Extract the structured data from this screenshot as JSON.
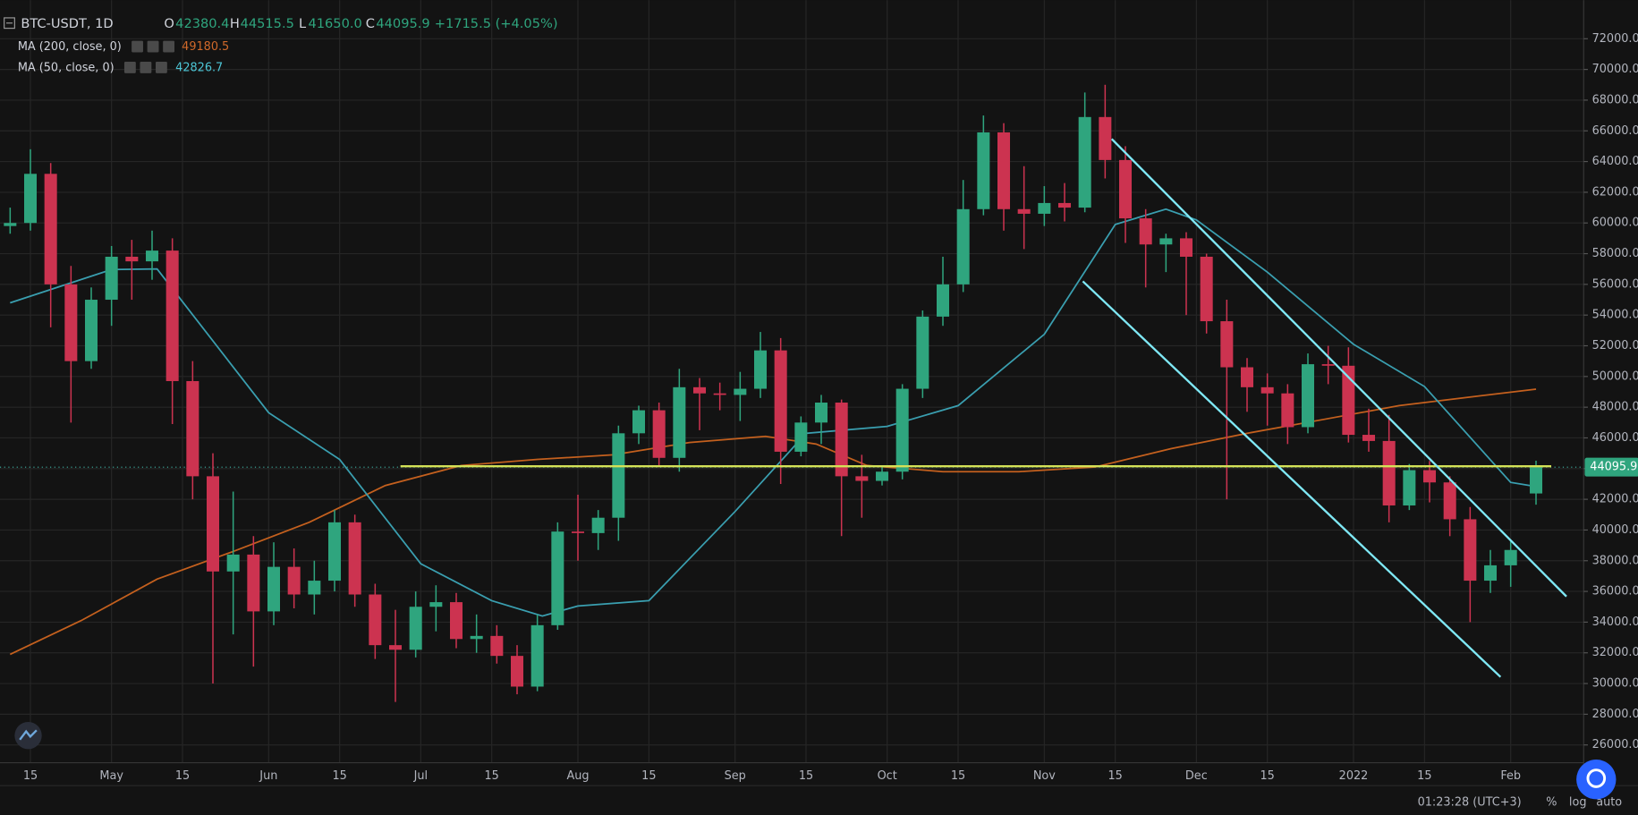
{
  "header": {
    "symbol": "BTC-USDT, 1D",
    "o_label": "O",
    "open": "42380.4",
    "h_label": "H",
    "high": "44515.5",
    "l_label": "L",
    "low": "41650.0",
    "c_label": "C",
    "close": "44095.9",
    "change": "+1715.5 (+4.05%)"
  },
  "indicators": [
    {
      "name": "MA (200, close, 0)",
      "value": "49180.5"
    },
    {
      "name": "MA (50, close, 0)",
      "value": "42826.7"
    }
  ],
  "footer": {
    "time": "01:23:28 (UTC+3)",
    "percent": "%",
    "log": "log",
    "auto": "auto"
  },
  "chart_data": {
    "type": "candlestick",
    "up_color": "#2fa57e",
    "down_color": "#cc3350",
    "grid": true,
    "x": [
      -4,
      0,
      4,
      8,
      12,
      16,
      20,
      24,
      28,
      32,
      36,
      40,
      44,
      48,
      52,
      56,
      60,
      64,
      68,
      72,
      76,
      80,
      84,
      88,
      92,
      96,
      100,
      104,
      108,
      112,
      116,
      120,
      124,
      128,
      132,
      136,
      140,
      144,
      148,
      152,
      156,
      160,
      164,
      168,
      172,
      176,
      180,
      184,
      188,
      192,
      196,
      200,
      204,
      208,
      212,
      216,
      220,
      224,
      228,
      232,
      236,
      240,
      244,
      248,
      252,
      256,
      260,
      264,
      268,
      272,
      276,
      280,
      284,
      288,
      292,
      297
    ],
    "open": [
      59800,
      60000,
      63200,
      56000,
      51000,
      55000,
      57800,
      57500,
      58200,
      49700,
      43500,
      37300,
      38400,
      34700,
      37600,
      35800,
      36700,
      40500,
      35800,
      32500,
      32200,
      35000,
      35300,
      32900,
      33100,
      31800,
      29800,
      33800,
      39900,
      39800,
      40800,
      46300,
      47800,
      44700,
      49300,
      48900,
      48800,
      49200,
      51700,
      45100,
      47000,
      48300,
      43500,
      43200,
      43800,
      49200,
      53900,
      56000,
      60900,
      65900,
      60900,
      60600,
      61300,
      61000,
      66900,
      64100,
      60300,
      58600,
      59000,
      57800,
      53600,
      50600,
      49300,
      48900,
      46700,
      50800,
      50700,
      46200,
      45800,
      41600,
      43900,
      43100,
      40700,
      36700,
      37700,
      42380.4
    ],
    "high": [
      61000,
      64800,
      63900,
      57200,
      55800,
      58500,
      58900,
      59500,
      59000,
      51000,
      45000,
      42500,
      39600,
      39200,
      38800,
      38000,
      41300,
      41000,
      36500,
      34800,
      36000,
      36400,
      35900,
      34500,
      33800,
      32500,
      34500,
      40500,
      42300,
      41300,
      46800,
      48100,
      48300,
      50500,
      49900,
      49600,
      50300,
      52900,
      52500,
      47400,
      48800,
      48500,
      44900,
      44200,
      49500,
      54300,
      57800,
      62800,
      67000,
      66500,
      63700,
      62400,
      62600,
      68500,
      69000,
      65000,
      60900,
      59300,
      59400,
      58000,
      55000,
      51200,
      50200,
      49500,
      51500,
      52000,
      51900,
      47900,
      47500,
      44300,
      44500,
      43500,
      41500,
      38700,
      39300,
      44515.5
    ],
    "low": [
      59300,
      59500,
      53200,
      47000,
      50500,
      53300,
      55000,
      56300,
      46900,
      42000,
      30000,
      33200,
      31100,
      33800,
      34900,
      34500,
      36000,
      35000,
      31600,
      28800,
      31700,
      33400,
      32300,
      32000,
      31300,
      29300,
      29500,
      33500,
      38000,
      38700,
      39300,
      45600,
      44200,
      43800,
      46500,
      47800,
      47100,
      48600,
      43000,
      44800,
      45600,
      39600,
      40800,
      42900,
      43300,
      48600,
      53300,
      55500,
      60500,
      59500,
      58300,
      59800,
      60100,
      60700,
      62900,
      58700,
      55800,
      56800,
      54000,
      52800,
      42000,
      47700,
      46800,
      45600,
      46300,
      49500,
      45700,
      45100,
      40500,
      41300,
      41800,
      39600,
      34000,
      35900,
      36300,
      41650
    ],
    "close": [
      60000,
      63200,
      56000,
      51000,
      55000,
      57800,
      57500,
      58200,
      49700,
      43500,
      37300,
      38400,
      34700,
      37600,
      35800,
      36700,
      40500,
      35800,
      32500,
      32200,
      35000,
      35300,
      32900,
      33100,
      31800,
      29800,
      33800,
      39900,
      39800,
      40800,
      46300,
      47800,
      44700,
      49300,
      48900,
      48800,
      49200,
      51700,
      45100,
      47000,
      48300,
      43500,
      43200,
      43800,
      49200,
      53900,
      56000,
      60900,
      65900,
      60900,
      60600,
      61300,
      61000,
      66900,
      64100,
      60300,
      58600,
      59000,
      57800,
      53600,
      50600,
      49300,
      48900,
      46700,
      50800,
      50700,
      46200,
      45800,
      41600,
      43900,
      43100,
      40700,
      36700,
      37700,
      38700,
      44095.9
    ],
    "series": [
      {
        "name": "MA (200, close, 0)",
        "color": "#c4601e",
        "x": [
          -4,
          10,
          25,
          40,
          55,
          70,
          85,
          100,
          115,
          130,
          145,
          155,
          165,
          180,
          195,
          210,
          225,
          240,
          255,
          270,
          285,
          297
        ],
        "values": [
          31900,
          34100,
          36800,
          38600,
          40500,
          42900,
          44200,
          44600,
          44900,
          45700,
          46100,
          45600,
          44200,
          43800,
          43800,
          44100,
          45300,
          46300,
          47200,
          48100,
          48700,
          49180.5
        ]
      },
      {
        "name": "MA (50, close, 0)",
        "color": "#3a9fb0",
        "x": [
          -4,
          16,
          25,
          47,
          61,
          77,
          91,
          101,
          108,
          122,
          139,
          153,
          169,
          183,
          200,
          214,
          224,
          230,
          244,
          261,
          275,
          292,
          297
        ],
        "values": [
          54800,
          56970,
          57000,
          47640,
          44600,
          37800,
          35400,
          34400,
          35050,
          35400,
          41200,
          46300,
          46750,
          48100,
          52750,
          59900,
          60900,
          60200,
          56800,
          52100,
          49350,
          43100,
          42826.7
        ]
      }
    ],
    "annotations": [
      {
        "type": "hline",
        "color": "#d4e157",
        "x": [
          73,
          300
        ],
        "y": [
          44150,
          44150
        ]
      },
      {
        "type": "trendline",
        "color": "#7fe8f5",
        "x": [
          213.3,
          303
        ],
        "y": [
          65470,
          35670
        ]
      },
      {
        "type": "trendline",
        "color": "#7fe8f5",
        "x": [
          207.6,
          290
        ],
        "y": [
          56200,
          30430
        ]
      }
    ],
    "xlim": [
      -6,
      306.4
    ],
    "ylim": [
      24844,
      74518
    ],
    "xticks": [
      {
        "value": 0,
        "label": "15"
      },
      {
        "value": 16,
        "label": "May"
      },
      {
        "value": 30,
        "label": "15"
      },
      {
        "value": 47,
        "label": "Jun"
      },
      {
        "value": 61,
        "label": "15"
      },
      {
        "value": 77,
        "label": "Jul"
      },
      {
        "value": 91,
        "label": "15"
      },
      {
        "value": 108,
        "label": "Aug"
      },
      {
        "value": 122,
        "label": "15"
      },
      {
        "value": 139,
        "label": "Sep"
      },
      {
        "value": 153,
        "label": "15"
      },
      {
        "value": 169,
        "label": "Oct"
      },
      {
        "value": 183,
        "label": "15"
      },
      {
        "value": 200,
        "label": "Nov"
      },
      {
        "value": 214,
        "label": "15"
      },
      {
        "value": 230,
        "label": "Dec"
      },
      {
        "value": 244,
        "label": "15"
      },
      {
        "value": 261,
        "label": "2022"
      },
      {
        "value": 275,
        "label": "15"
      },
      {
        "value": 292,
        "label": "Feb"
      }
    ],
    "yticks": [
      {
        "value": 26000,
        "label": "26000.0"
      },
      {
        "value": 28000,
        "label": "28000.0"
      },
      {
        "value": 30000,
        "label": "30000.0"
      },
      {
        "value": 32000,
        "label": "32000.0"
      },
      {
        "value": 34000,
        "label": "34000.0"
      },
      {
        "value": 36000,
        "label": "36000.0"
      },
      {
        "value": 38000,
        "label": "38000.0"
      },
      {
        "value": 40000,
        "label": "40000.0"
      },
      {
        "value": 42000,
        "label": "42000.0"
      },
      {
        "value": 44000,
        "label": "44000.0"
      },
      {
        "value": 46000,
        "label": "46000.0"
      },
      {
        "value": 48000,
        "label": "48000.0"
      },
      {
        "value": 50000,
        "label": "50000.0"
      },
      {
        "value": 52000,
        "label": "52000.0"
      },
      {
        "value": 54000,
        "label": "54000.0"
      },
      {
        "value": 56000,
        "label": "56000.0"
      },
      {
        "value": 58000,
        "label": "58000.0"
      },
      {
        "value": 60000,
        "label": "60000.0"
      },
      {
        "value": 62000,
        "label": "62000.0"
      },
      {
        "value": 64000,
        "label": "64000.0"
      },
      {
        "value": 66000,
        "label": "66000.0"
      },
      {
        "value": 68000,
        "label": "68000.0"
      },
      {
        "value": 70000,
        "label": "70000.0"
      },
      {
        "value": 72000,
        "label": "72000.0"
      }
    ]
  }
}
